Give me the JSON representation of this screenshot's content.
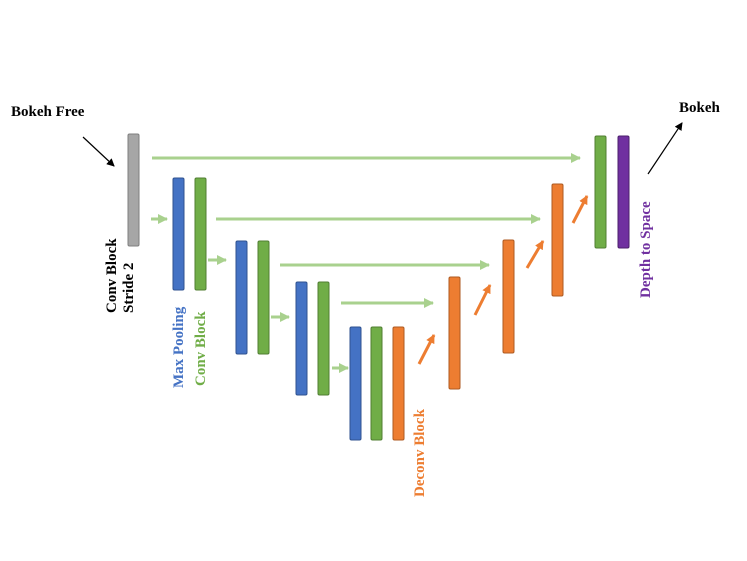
{
  "labels": {
    "input": "Bokeh Free",
    "output": "Bokeh",
    "conv_stride_line1": "Conv Block",
    "conv_stride_line2": "Stride 2",
    "max_pooling": "Max Pooling",
    "conv_block": "Conv Block",
    "deconv_block": "Deconv Block",
    "depth_to_space": "Depth to Space"
  },
  "colors": {
    "conv_stride": "#a6a6a6",
    "max_pooling": "#4472c4",
    "conv_block": "#70ad47",
    "deconv_block": "#ed7d31",
    "depth_to_space": "#7030a0",
    "skip_arrow": "#a9d18e",
    "label_black": "#000000"
  }
}
